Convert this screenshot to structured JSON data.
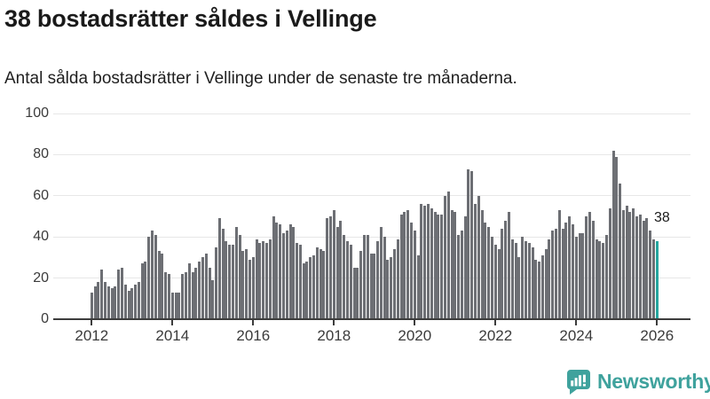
{
  "header": {
    "title": "38 bostadsrätter såldes i Vellinge",
    "subtitle": "Antal sålda bostadsrätter i Vellinge under de senaste tre månaderna."
  },
  "chart_data": {
    "type": "bar",
    "title": "38 bostadsrätter såldes i Vellinge",
    "description": "Antal sålda bostadsrätter i Vellinge under de senaste tre månaderna.",
    "frequency": "monthly",
    "x_start": "2012-01",
    "x_end": "2026-01",
    "ylim": [
      0,
      100
    ],
    "grid": true,
    "y_ticks": [
      0,
      20,
      40,
      60,
      80,
      100
    ],
    "x_ticks": [
      "2012",
      "2014",
      "2016",
      "2018",
      "2020",
      "2022",
      "2024",
      "2026"
    ],
    "bar_color": "#6d6f74",
    "highlight_color": "#25a69f",
    "highlight_last": true,
    "annotation": {
      "label": "38"
    },
    "values": [
      13,
      16,
      18,
      24,
      18,
      16,
      15,
      16,
      24,
      25,
      17,
      14,
      15,
      17,
      18,
      27,
      28,
      40,
      43,
      41,
      33,
      32,
      23,
      22,
      13,
      13,
      13,
      22,
      23,
      27,
      23,
      25,
      28,
      30,
      32,
      25,
      19,
      35,
      49,
      44,
      38,
      36,
      36,
      45,
      41,
      33,
      34,
      29,
      30,
      39,
      37,
      38,
      37,
      39,
      50,
      47,
      46,
      42,
      43,
      46,
      45,
      37,
      36,
      27,
      28,
      30,
      31,
      35,
      34,
      33,
      49,
      50,
      53,
      45,
      48,
      41,
      38,
      36,
      25,
      25,
      33,
      41,
      41,
      32,
      32,
      38,
      45,
      40,
      29,
      30,
      34,
      39,
      51,
      52,
      53,
      47,
      43,
      31,
      56,
      55,
      56,
      54,
      52,
      51,
      51,
      60,
      62,
      53,
      52,
      41,
      43,
      50,
      73,
      72,
      56,
      60,
      53,
      47,
      45,
      40,
      36,
      34,
      44,
      48,
      52,
      39,
      37,
      30,
      40,
      38,
      37,
      35,
      29,
      28,
      31,
      34,
      39,
      43,
      44,
      53,
      44,
      47,
      50,
      46,
      40,
      42,
      42,
      50,
      52,
      48,
      39,
      38,
      37,
      41,
      54,
      82,
      79,
      66,
      53,
      55,
      52,
      54,
      50,
      51,
      48,
      49,
      43,
      39,
      38
    ]
  },
  "footer": {
    "brand": "Newsworthy"
  }
}
